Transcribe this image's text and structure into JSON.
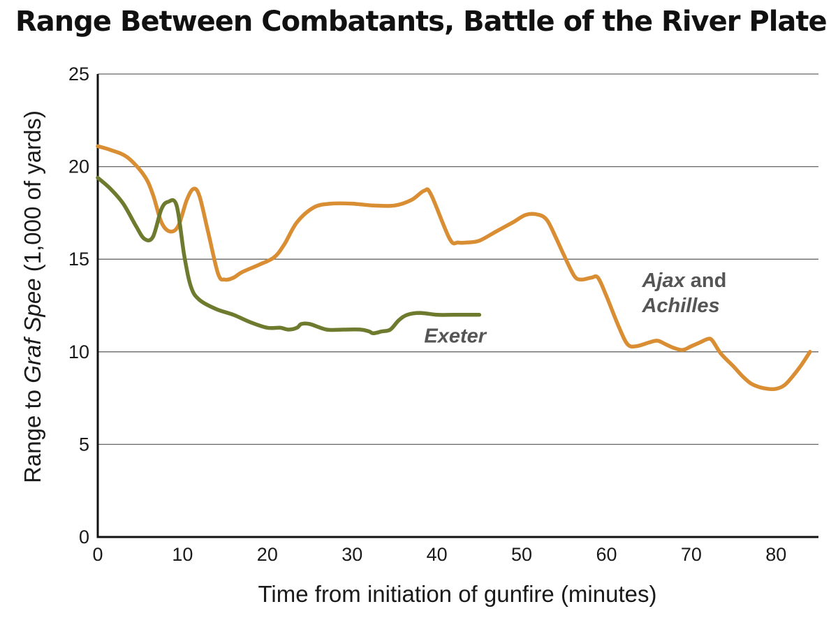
{
  "chart_data": {
    "type": "line",
    "title": "Range Between Combatants, Battle of the River Plate",
    "xlabel": "Time from initiation of gunfire (minutes)",
    "ylabel": {
      "prefix": "Range to ",
      "italic": "Graf Spee",
      "suffix": " (1,000 of yards)"
    },
    "xlim": [
      0,
      85
    ],
    "ylim": [
      0,
      25
    ],
    "xticks": [
      "0",
      "10",
      "20",
      "30",
      "40",
      "50",
      "60",
      "70",
      "80"
    ],
    "yticks": [
      "0",
      "5",
      "10",
      "15",
      "20",
      "25"
    ],
    "grid": "horizontal",
    "colors": {
      "exeter": "#6e7b2e",
      "ajax_achilles": "#d98e33",
      "grid": "#666666",
      "axis": "#111111"
    },
    "series": [
      {
        "key": "exeter",
        "label_parts": [
          {
            "text": "Exeter",
            "italic": true
          }
        ],
        "points": [
          [
            0,
            19.4
          ],
          [
            1.5,
            18.8
          ],
          [
            3,
            18.0
          ],
          [
            4.5,
            16.8
          ],
          [
            5.5,
            16.1
          ],
          [
            6.5,
            16.2
          ],
          [
            7.5,
            17.7
          ],
          [
            8.3,
            18.1
          ],
          [
            9.3,
            17.9
          ],
          [
            10.2,
            15.2
          ],
          [
            11,
            13.5
          ],
          [
            12,
            12.8
          ],
          [
            14,
            12.3
          ],
          [
            16,
            12.0
          ],
          [
            18,
            11.6
          ],
          [
            20,
            11.3
          ],
          [
            21.5,
            11.3
          ],
          [
            22.5,
            11.2
          ],
          [
            23.5,
            11.3
          ],
          [
            24,
            11.5
          ],
          [
            25,
            11.5
          ],
          [
            27,
            11.2
          ],
          [
            29,
            11.2
          ],
          [
            31,
            11.2
          ],
          [
            32,
            11.1
          ],
          [
            32.5,
            11.0
          ],
          [
            33.5,
            11.1
          ],
          [
            34.5,
            11.2
          ],
          [
            35.5,
            11.7
          ],
          [
            36.5,
            12.0
          ],
          [
            38,
            12.1
          ],
          [
            40,
            12.0
          ],
          [
            42,
            12.0
          ],
          [
            45,
            12.0
          ]
        ]
      },
      {
        "key": "ajax_achilles",
        "label_parts": [
          {
            "text": "Ajax",
            "italic": true
          },
          {
            "text": " and",
            "italic": false
          },
          {
            "text": "Achilles",
            "italic": true
          }
        ],
        "points": [
          [
            0,
            21.1
          ],
          [
            1.5,
            20.9
          ],
          [
            3.5,
            20.5
          ],
          [
            5.5,
            19.5
          ],
          [
            6.5,
            18.5
          ],
          [
            7.5,
            17.0
          ],
          [
            8.5,
            16.5
          ],
          [
            9.5,
            16.8
          ],
          [
            10.5,
            18.2
          ],
          [
            11.3,
            18.8
          ],
          [
            12,
            18.4
          ],
          [
            13,
            16.5
          ],
          [
            14.2,
            14.2
          ],
          [
            15,
            13.9
          ],
          [
            16,
            14.0
          ],
          [
            17,
            14.3
          ],
          [
            19,
            14.7
          ],
          [
            20.8,
            15.1
          ],
          [
            22,
            15.8
          ],
          [
            23.5,
            17.0
          ],
          [
            25.5,
            17.8
          ],
          [
            27.5,
            18.0
          ],
          [
            30,
            18.0
          ],
          [
            32.5,
            17.9
          ],
          [
            35,
            17.9
          ],
          [
            37,
            18.2
          ],
          [
            38.5,
            18.7
          ],
          [
            39.3,
            18.5
          ],
          [
            41.5,
            16.1
          ],
          [
            42.5,
            15.9
          ],
          [
            43.5,
            15.9
          ],
          [
            45,
            16.0
          ],
          [
            47,
            16.5
          ],
          [
            49,
            17.0
          ],
          [
            50.5,
            17.4
          ],
          [
            52,
            17.4
          ],
          [
            53,
            17.1
          ],
          [
            54,
            16.2
          ],
          [
            55,
            15.2
          ],
          [
            56.2,
            14.1
          ],
          [
            57,
            13.9
          ],
          [
            58.2,
            14.0
          ],
          [
            59,
            14.0
          ],
          [
            60,
            13.0
          ],
          [
            61.5,
            11.3
          ],
          [
            62.5,
            10.4
          ],
          [
            63.5,
            10.3
          ],
          [
            65,
            10.5
          ],
          [
            66,
            10.6
          ],
          [
            67,
            10.4
          ],
          [
            68,
            10.2
          ],
          [
            69,
            10.1
          ],
          [
            70,
            10.3
          ],
          [
            71,
            10.5
          ],
          [
            72,
            10.7
          ],
          [
            72.5,
            10.6
          ],
          [
            73.5,
            9.9
          ],
          [
            75,
            9.2
          ],
          [
            76,
            8.7
          ],
          [
            77,
            8.3
          ],
          [
            78,
            8.1
          ],
          [
            79,
            8.0
          ],
          [
            80,
            8.0
          ],
          [
            81,
            8.2
          ],
          [
            82,
            8.7
          ],
          [
            83,
            9.3
          ],
          [
            84,
            10.0
          ]
        ]
      }
    ]
  }
}
